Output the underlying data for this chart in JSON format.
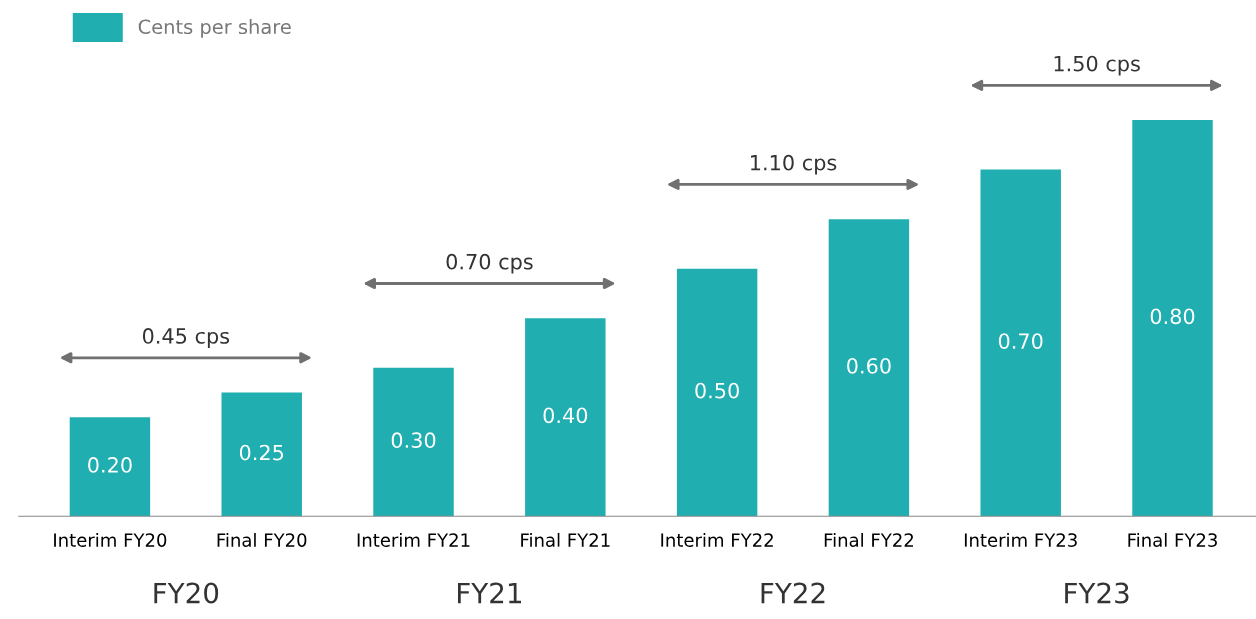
{
  "chart_data": {
    "type": "bar",
    "categories": [
      "Interim FY20",
      "Final FY20",
      "Interim FY21",
      "Final FY21",
      "Interim FY22",
      "Final FY22",
      "Interim FY23",
      "Final FY23"
    ],
    "series": [
      {
        "name": "Cents per share",
        "color": "#20aeb0",
        "values": [
          0.2,
          0.25,
          0.3,
          0.4,
          0.5,
          0.6,
          0.7,
          0.8
        ],
        "value_labels": [
          "0.20",
          "0.25",
          "0.30",
          "0.40",
          "0.50",
          "0.60",
          "0.70",
          "0.80"
        ]
      }
    ],
    "legend": "top left",
    "grid": false,
    "tick_labels": "x",
    "annotations": [
      "FY20",
      "FY21",
      "FY22",
      "FY23",
      "0.45 cps",
      "0.70 cps",
      "1.10 cps",
      "1.50 cps"
    ]
  }
}
